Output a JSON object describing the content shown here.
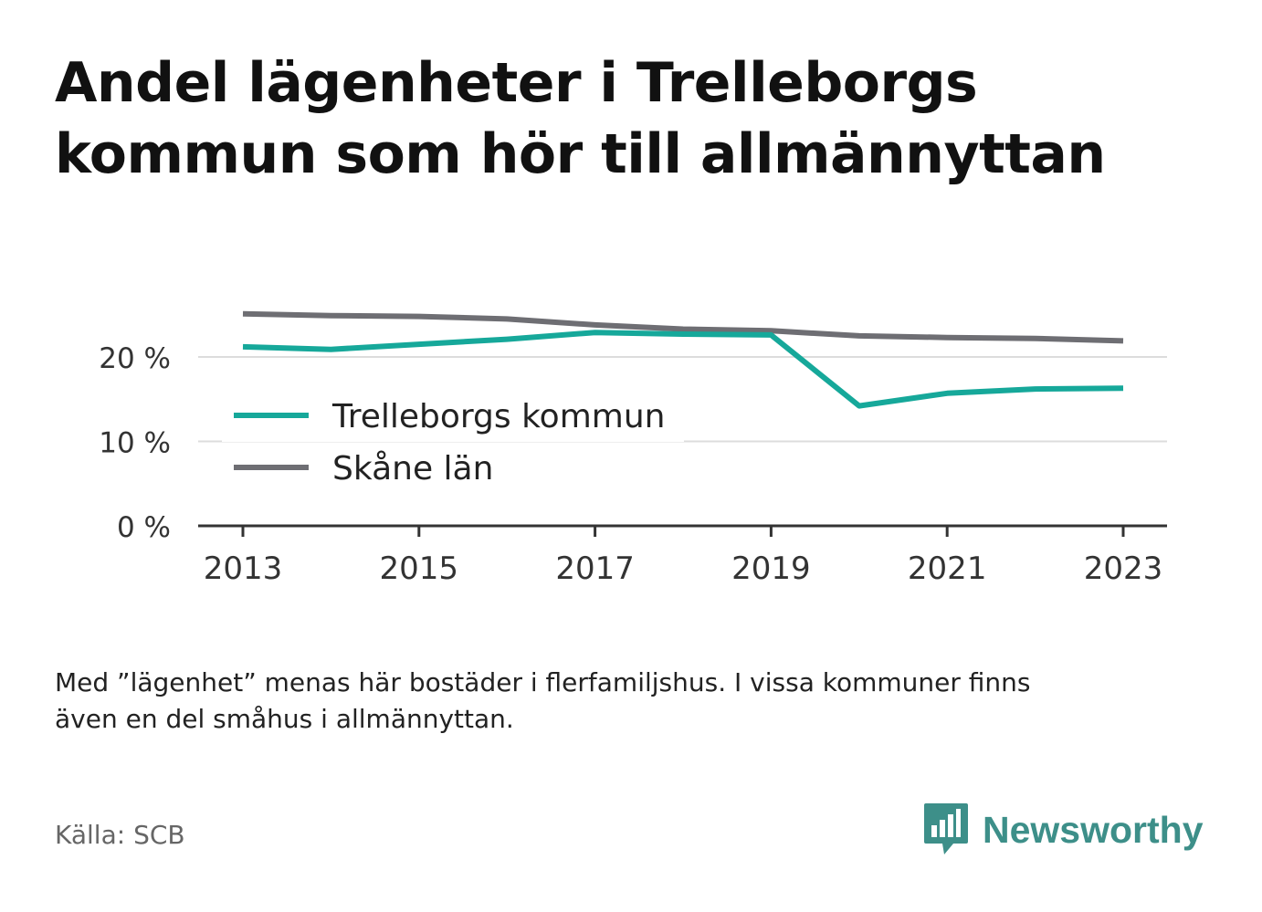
{
  "title_lines": [
    "Andel lägenheter i Trelleborgs",
    "kommun som hör till allmännyttan"
  ],
  "note_lines": [
    "Med ”lägenhet” menas här bostäder i flerfamiljshus. I vissa kommuner finns",
    "även en del småhus i allmännyttan."
  ],
  "source": "Källa: SCB",
  "brand": {
    "name": "Newsworthy",
    "color": "#3d8f89",
    "icon": "bar-chart-speech-bubble-icon"
  },
  "chart_data": {
    "type": "line",
    "x": [
      2013,
      2014,
      2015,
      2016,
      2017,
      2018,
      2019,
      2020,
      2021,
      2022,
      2023
    ],
    "xticks": [
      2013,
      2015,
      2017,
      2019,
      2021,
      2023
    ],
    "ylim": [
      0,
      30
    ],
    "yticks": [
      0,
      10,
      20
    ],
    "ytick_labels": [
      "0 %",
      "10 %",
      "20 %"
    ],
    "grid": true,
    "legend_position": "left-middle",
    "series": [
      {
        "name": "Trelleborgs kommun",
        "color": "#16a89a",
        "values": [
          21.2,
          20.9,
          21.5,
          22.1,
          22.9,
          22.7,
          22.6,
          14.2,
          15.7,
          16.2,
          16.3
        ]
      },
      {
        "name": "Skåne län",
        "color": "#6e6e73",
        "values": [
          25.1,
          24.9,
          24.8,
          24.5,
          23.8,
          23.3,
          23.1,
          22.5,
          22.3,
          22.2,
          21.9
        ]
      }
    ]
  }
}
